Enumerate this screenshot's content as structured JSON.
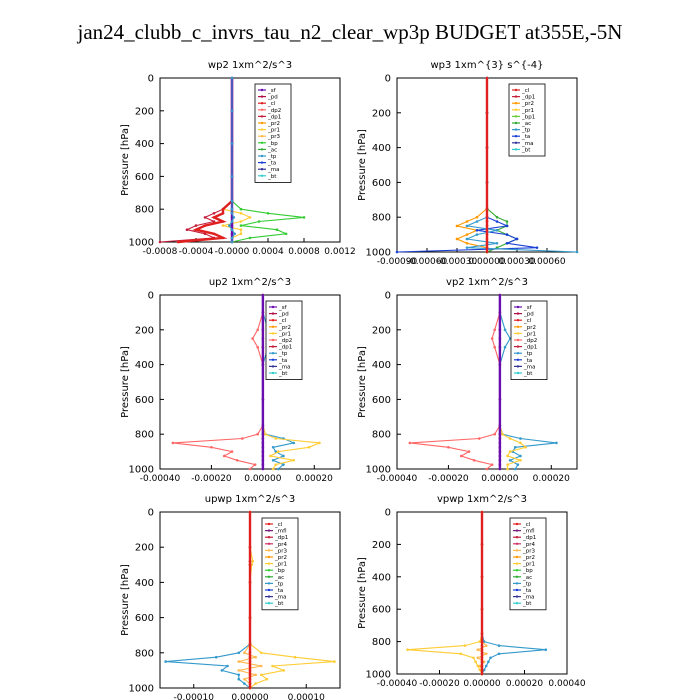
{
  "figure_title": "jan24_clubb_c_invrs_tau_n2_clear_wp3p  BUDGET at355E,-5N",
  "ylabel": "Pressure [hPa]",
  "yticks": [
    "0",
    "200",
    "400",
    "600",
    "800",
    "1000"
  ],
  "legend_colors": {
    "_sf": "#6a0dad",
    "_pd": "#b01048",
    "_cl": "#e0201f",
    "_dp1": "#c41e3a",
    "_dp2": "#ff6666",
    "_pr1": "#ffcc33",
    "_pr2": "#ff9900",
    "_pr3": "#ffb84d",
    "_pr4": "#cc3366",
    "_bp1": "#66cc33",
    "_bp": "#33cc33",
    "_ac": "#33aa33",
    "_tp": "#3399cc",
    "_ta": "#1a3fd6",
    "_ma": "#333399",
    "_bt": "#33cccc",
    "_mfl": "#7a1a7a"
  },
  "chart_data": [
    {
      "id": "wp2",
      "type": "line",
      "title": "wp2  1xm^2/s^3",
      "xticks": [
        "-0.0008",
        "-0.0004",
        "-0.0000",
        "0.0004",
        "0.0008",
        "0.0012"
      ],
      "xlim": [
        -0.0008,
        0.0012
      ],
      "ylim": [
        0,
        1000
      ],
      "legend": [
        "_sf",
        "_pd",
        "_cl",
        "_dp2",
        "_dp1",
        "_pr2",
        "_pr1",
        "_pr3",
        "_bp",
        "_ac",
        "_tp",
        "_ta",
        "_ma",
        "_bt"
      ],
      "pressure": [
        0,
        200,
        400,
        600,
        750,
        800,
        825,
        850,
        875,
        900,
        925,
        950,
        975,
        1000
      ],
      "series": [
        {
          "name": "_bp",
          "values": [
            0,
            0,
            0,
            0,
            0,
            0.0001,
            0.0004,
            0.0008,
            0.0003,
            0.0001,
            0.0005,
            0.0006,
            0.0002,
            0
          ]
        },
        {
          "name": "_pr1",
          "values": [
            0,
            0,
            0,
            0,
            0,
            -0.0001,
            0.0001,
            0.0002,
            0.0001,
            -0.0001,
            0.0001,
            0.0001,
            0,
            0
          ]
        },
        {
          "name": "_dp1",
          "values": [
            0,
            0,
            0,
            0,
            0,
            -0.0001,
            -0.0002,
            -0.0003,
            -0.0002,
            -0.0004,
            -0.0005,
            -0.0003,
            -0.0002,
            -0.0008
          ]
        },
        {
          "name": "_cl",
          "values": [
            0,
            0,
            0,
            0,
            0,
            -0.0001,
            -0.0001,
            -0.0002,
            -0.0001,
            -0.0003,
            -0.0004,
            -0.0002,
            -0.0001,
            -0.0006
          ]
        },
        {
          "name": "_sf",
          "values": [
            0,
            0,
            0,
            0,
            0,
            0,
            0,
            0,
            0,
            0,
            0,
            0,
            0,
            0
          ]
        },
        {
          "name": "_tp",
          "values": [
            0,
            0,
            0,
            0,
            0,
            0,
            0,
            2e-05,
            0,
            -3e-05,
            0,
            3e-05,
            0,
            0
          ]
        }
      ]
    },
    {
      "id": "wp3",
      "type": "line",
      "title": "wp3  1xm^{3} s^{-4}",
      "xticks": [
        "-0.00090",
        "-0.00060",
        "-0.00030",
        "0.00000",
        "0.00030",
        "0.00060"
      ],
      "xlim": [
        -0.0009,
        0.0009
      ],
      "ylim": [
        0,
        1000
      ],
      "legend": [
        "_cl",
        "_dp1",
        "_pr2",
        "_pr1",
        "_bp1",
        "_ac",
        "_tp",
        "_ta",
        "_ma",
        "_bt"
      ],
      "pressure": [
        0,
        200,
        400,
        600,
        750,
        800,
        825,
        850,
        875,
        900,
        925,
        950,
        975,
        1000
      ],
      "series": [
        {
          "name": "_ac",
          "values": [
            0,
            0,
            0,
            0,
            0,
            0.0001,
            0.0002,
            0.0002,
            0.0001,
            0.0002,
            0.0003,
            0.0002,
            0.0001,
            0
          ]
        },
        {
          "name": "_pr2",
          "values": [
            0,
            0,
            0,
            0,
            0,
            -0.0001,
            -0.0002,
            -0.0003,
            -0.0001,
            -0.0002,
            -0.0003,
            -0.0002,
            0,
            0
          ]
        },
        {
          "name": "_ta",
          "values": [
            0,
            0,
            0,
            0,
            0,
            0,
            0.0001,
            0.0002,
            -0.0001,
            0.0002,
            0.0003,
            0.0002,
            0.0005,
            -0.0009
          ]
        },
        {
          "name": "_tp",
          "values": [
            0,
            0,
            0,
            0,
            0,
            0,
            -0.0001,
            -0.0002,
            0.0001,
            -0.0001,
            -0.0002,
            0.0001,
            -0.0002,
            0.0009
          ]
        },
        {
          "name": "_cl",
          "values": [
            0,
            0,
            0,
            0,
            0,
            0,
            0,
            0,
            0,
            0,
            0,
            0,
            0,
            0
          ]
        }
      ]
    },
    {
      "id": "up2",
      "type": "line",
      "title": "up2  1xm^2/s^3",
      "xticks": [
        "-0.00040",
        "-0.00020",
        "0.00000",
        "0.00020"
      ],
      "xlim": [
        -0.0004,
        0.0003
      ],
      "ylim": [
        0,
        1000
      ],
      "legend": [
        "_sf",
        "_pd",
        "_cl",
        "_pr2",
        "_pr1",
        "_dp2",
        "_dp1",
        "_tp",
        "_ta",
        "_ma",
        "_bt"
      ],
      "pressure": [
        0,
        100,
        200,
        250,
        300,
        400,
        600,
        750,
        800,
        825,
        850,
        875,
        900,
        925,
        950,
        975,
        1000
      ],
      "series": [
        {
          "name": "_dp2",
          "values": [
            0,
            0,
            -2e-05,
            -4e-05,
            -2e-05,
            0,
            0,
            0,
            -2e-05,
            -8e-05,
            -0.00035,
            -0.0002,
            -0.00012,
            -0.00015,
            -0.0001,
            -3e-05,
            -5e-05
          ]
        },
        {
          "name": "_tp",
          "values": [
            0,
            0,
            2e-05,
            4e-05,
            2e-05,
            0,
            0,
            0,
            1e-05,
            8e-05,
            0.00012,
            4e-05,
            5e-05,
            8e-05,
            4e-05,
            8e-05,
            6e-05
          ]
        },
        {
          "name": "_pr1",
          "values": [
            0,
            0,
            0,
            0,
            0,
            0,
            0,
            0,
            1e-05,
            5e-05,
            0.00022,
            0.00018,
            6e-05,
            3e-05,
            0.00012,
            5e-05,
            4e-05
          ]
        },
        {
          "name": "_sf",
          "values": [
            0,
            0,
            0,
            0,
            0,
            0,
            0,
            0,
            0,
            0,
            0,
            0,
            0,
            0,
            0,
            0,
            0
          ]
        }
      ]
    },
    {
      "id": "vp2",
      "type": "line",
      "title": "vp2  1xm^2/s^3",
      "xticks": [
        "-0.00040",
        "-0.00020",
        "0.00000",
        "0.00020"
      ],
      "xlim": [
        -0.0004,
        0.0003
      ],
      "ylim": [
        0,
        1000
      ],
      "legend": [
        "_sf",
        "_pd",
        "_cl",
        "_pr2",
        "_pr1",
        "_dp2",
        "_dp1",
        "_tp",
        "_ta",
        "_ma",
        "_bt"
      ],
      "pressure": [
        0,
        100,
        200,
        250,
        300,
        400,
        600,
        750,
        800,
        825,
        850,
        875,
        900,
        925,
        950,
        975,
        1000
      ],
      "series": [
        {
          "name": "_dp2",
          "values": [
            0,
            0,
            -2e-05,
            -3e-05,
            -2e-05,
            0,
            0,
            0,
            -2e-05,
            -8e-05,
            -0.00035,
            -0.0002,
            -0.00012,
            -0.00015,
            -0.0001,
            -3e-05,
            -5e-05
          ]
        },
        {
          "name": "_tp",
          "values": [
            0,
            0,
            2e-05,
            4e-05,
            2e-05,
            0,
            0,
            0,
            1e-05,
            8e-05,
            0.00022,
            6e-05,
            5e-05,
            8e-05,
            4e-05,
            7e-05,
            6e-05
          ]
        },
        {
          "name": "_pr1",
          "values": [
            0,
            0,
            0,
            0,
            0,
            0,
            0,
            0,
            1e-05,
            4e-05,
            8e-05,
            0.0001,
            4e-05,
            3e-05,
            8e-05,
            3e-05,
            3e-05
          ]
        },
        {
          "name": "_sf",
          "values": [
            0,
            0,
            0,
            0,
            0,
            0,
            0,
            0,
            0,
            0,
            0,
            0,
            0,
            0,
            0,
            0,
            0
          ]
        }
      ]
    },
    {
      "id": "upwp",
      "type": "line",
      "title": "upwp  1xm^2/s^3",
      "xticks": [
        "-0.00010",
        "0.00000",
        "0.00010"
      ],
      "xlim": [
        -0.00016,
        0.00016
      ],
      "ylim": [
        0,
        1000
      ],
      "legend": [
        "_cl",
        "_mfl",
        "_dp1",
        "_pr4",
        "_pr3",
        "_pr2",
        "_pr1",
        "_bp",
        "_ac",
        "_tp",
        "_ta",
        "_ma",
        "_bt"
      ],
      "pressure": [
        0,
        200,
        280,
        300,
        400,
        600,
        750,
        800,
        825,
        850,
        875,
        900,
        925,
        950,
        975,
        1000
      ],
      "series": [
        {
          "name": "_pr1",
          "values": [
            0,
            0,
            5e-06,
            3e-06,
            0,
            0,
            0,
            2e-05,
            8e-05,
            0.00015,
            4e-05,
            6e-05,
            2e-05,
            3e-05,
            1e-05,
            0
          ]
        },
        {
          "name": "_tp",
          "values": [
            0,
            0,
            0,
            0,
            0,
            0,
            0,
            -2e-05,
            -6e-05,
            -0.00015,
            -4e-05,
            -5e-05,
            -2e-05,
            -2e-05,
            -1e-05,
            0
          ]
        },
        {
          "name": "_pr3",
          "values": [
            0,
            0,
            0,
            0,
            0,
            0,
            0,
            -1e-05,
            1e-05,
            -2e-05,
            2e-05,
            -2e-05,
            1e-05,
            -1e-05,
            0,
            0
          ]
        },
        {
          "name": "_cl",
          "values": [
            0,
            0,
            0,
            0,
            0,
            0,
            0,
            0,
            0,
            0,
            0,
            0,
            0,
            0,
            0,
            0
          ]
        }
      ]
    },
    {
      "id": "vpwp",
      "type": "line",
      "title": "vpwp  1xm^2/s^3",
      "xticks": [
        "-0.00040",
        "-0.00020",
        "0.00000",
        "0.00020",
        "0.00040"
      ],
      "xlim": [
        -0.0004,
        0.0004
      ],
      "ylim": [
        0,
        1000
      ],
      "legend": [
        "_cl",
        "_mfl",
        "_dp1",
        "_pr4",
        "_pr3",
        "_pr2",
        "_pr1",
        "_bp",
        "_ac",
        "_tp",
        "_ta",
        "_ma",
        "_bt"
      ],
      "pressure": [
        0,
        200,
        400,
        600,
        750,
        800,
        825,
        850,
        875,
        900,
        925,
        950,
        975,
        1000
      ],
      "series": [
        {
          "name": "_pr1",
          "values": [
            0,
            0,
            0,
            0,
            0,
            -1e-05,
            -8e-05,
            -0.00035,
            -0.0001,
            -4e-05,
            -3e-05,
            -2e-05,
            -1e-05,
            0
          ]
        },
        {
          "name": "_tp",
          "values": [
            0,
            0,
            0,
            0,
            0,
            1e-05,
            8e-05,
            0.0003,
            8e-05,
            4e-05,
            3e-05,
            2e-05,
            1e-05,
            0
          ]
        },
        {
          "name": "_pr3",
          "values": [
            0,
            0,
            0,
            0,
            0,
            0,
            2e-05,
            -2e-05,
            2e-05,
            -2e-05,
            1e-05,
            -1e-05,
            0,
            0
          ]
        },
        {
          "name": "_cl",
          "values": [
            0,
            0,
            0,
            0,
            0,
            0,
            0,
            0,
            0,
            0,
            0,
            0,
            0,
            0
          ]
        }
      ]
    }
  ]
}
